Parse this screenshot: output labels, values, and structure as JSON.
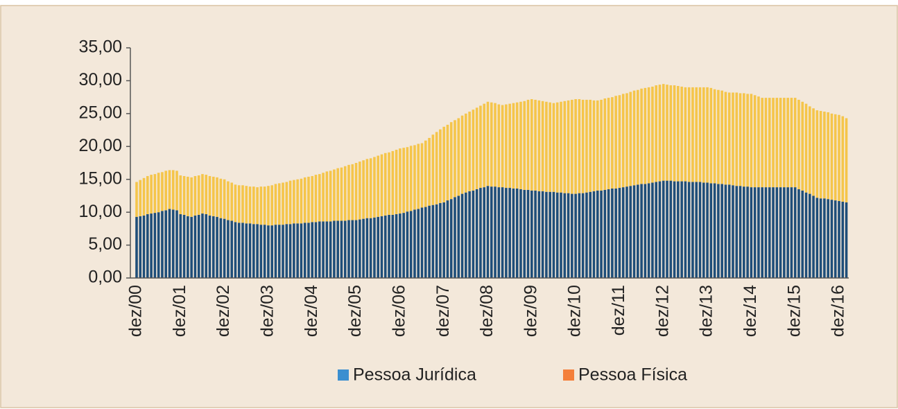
{
  "chart_data": {
    "type": "stacked_bar",
    "categories": [
      "dez/00",
      null,
      null,
      null,
      null,
      null,
      null,
      null,
      null,
      null,
      null,
      null,
      "dez/01",
      null,
      null,
      null,
      null,
      null,
      null,
      null,
      null,
      null,
      null,
      null,
      "dez/02",
      null,
      null,
      null,
      null,
      null,
      null,
      null,
      null,
      null,
      null,
      null,
      "dez/03",
      null,
      null,
      null,
      null,
      null,
      null,
      null,
      null,
      null,
      null,
      null,
      "dez/04",
      null,
      null,
      null,
      null,
      null,
      null,
      null,
      null,
      null,
      null,
      null,
      "dez/05",
      null,
      null,
      null,
      null,
      null,
      null,
      null,
      null,
      null,
      null,
      null,
      "dez/06",
      null,
      null,
      null,
      null,
      null,
      null,
      null,
      null,
      null,
      null,
      null,
      "dez/07",
      null,
      null,
      null,
      null,
      null,
      null,
      null,
      null,
      null,
      null,
      null,
      "dez/08",
      null,
      null,
      null,
      null,
      null,
      null,
      null,
      null,
      null,
      null,
      null,
      "dez/09",
      null,
      null,
      null,
      null,
      null,
      null,
      null,
      null,
      null,
      null,
      null,
      "dez/10",
      null,
      null,
      null,
      null,
      null,
      null,
      null,
      null,
      null,
      null,
      null,
      "dez/11",
      null,
      null,
      null,
      null,
      null,
      null,
      null,
      null,
      null,
      null,
      null,
      "dez/12",
      null,
      null,
      null,
      null,
      null,
      null,
      null,
      null,
      null,
      null,
      null,
      "dez/13",
      null,
      null,
      null,
      null,
      null,
      null,
      null,
      null,
      null,
      null,
      null,
      "dez/14",
      null,
      null,
      null,
      null,
      null,
      null,
      null,
      null,
      null,
      null,
      null,
      "dez/15",
      null,
      null,
      null,
      null,
      null,
      null,
      null,
      null,
      null,
      null,
      null,
      "dez/16",
      null,
      null
    ],
    "series": [
      {
        "name": "Pessoa Jurídica",
        "color": "#1f4e79",
        "legend_color": "#3b8fd0",
        "values": [
          9.3,
          9.4,
          9.5,
          9.7,
          9.8,
          9.9,
          10.0,
          10.2,
          10.3,
          10.5,
          10.4,
          10.3,
          9.7,
          9.6,
          9.4,
          9.3,
          9.5,
          9.6,
          9.8,
          9.7,
          9.5,
          9.4,
          9.3,
          9.1,
          9.0,
          8.8,
          8.7,
          8.5,
          8.4,
          8.4,
          8.3,
          8.3,
          8.2,
          8.2,
          8.1,
          8.1,
          8.0,
          8.0,
          8.1,
          8.1,
          8.1,
          8.2,
          8.2,
          8.3,
          8.3,
          8.3,
          8.4,
          8.4,
          8.5,
          8.5,
          8.6,
          8.6,
          8.6,
          8.6,
          8.7,
          8.7,
          8.7,
          8.7,
          8.8,
          8.8,
          8.8,
          8.9,
          9.0,
          9.1,
          9.1,
          9.2,
          9.3,
          9.4,
          9.5,
          9.6,
          9.6,
          9.7,
          9.8,
          9.9,
          10.1,
          10.2,
          10.4,
          10.5,
          10.7,
          10.8,
          11.0,
          11.1,
          11.2,
          11.4,
          11.5,
          11.8,
          12.0,
          12.3,
          12.5,
          12.8,
          13.0,
          13.2,
          13.3,
          13.5,
          13.7,
          13.8,
          14.0,
          13.9,
          13.9,
          13.8,
          13.8,
          13.7,
          13.7,
          13.6,
          13.6,
          13.5,
          13.4,
          13.4,
          13.3,
          13.3,
          13.2,
          13.2,
          13.1,
          13.1,
          13.1,
          13.0,
          13.0,
          12.9,
          12.9,
          12.8,
          12.8,
          12.9,
          12.9,
          13.0,
          13.1,
          13.2,
          13.3,
          13.3,
          13.4,
          13.5,
          13.6,
          13.6,
          13.7,
          13.8,
          13.9,
          14.0,
          14.1,
          14.2,
          14.3,
          14.3,
          14.4,
          14.5,
          14.6,
          14.7,
          14.8,
          14.8,
          14.8,
          14.7,
          14.7,
          14.7,
          14.7,
          14.6,
          14.6,
          14.6,
          14.6,
          14.5,
          14.5,
          14.4,
          14.4,
          14.3,
          14.3,
          14.2,
          14.2,
          14.1,
          14.0,
          14.0,
          13.9,
          13.9,
          13.8,
          13.8,
          13.8,
          13.8,
          13.8,
          13.8,
          13.8,
          13.8,
          13.8,
          13.8,
          13.8,
          13.8,
          13.8,
          13.5,
          13.3,
          13.0,
          12.8,
          12.5,
          12.2,
          12.1,
          12.1,
          12.0,
          11.9,
          11.8,
          11.7,
          11.6,
          11.5
        ]
      },
      {
        "name": "Pessoa Física",
        "color": "#f5c54a",
        "legend_color": "#f47f3a",
        "values": [
          5.3,
          5.5,
          5.7,
          5.8,
          5.9,
          5.9,
          6.0,
          5.9,
          6.0,
          5.9,
          6.0,
          6.0,
          5.9,
          5.9,
          6.0,
          6.0,
          6.0,
          6.0,
          6.0,
          6.0,
          6.0,
          6.0,
          6.0,
          6.0,
          6.0,
          5.9,
          5.8,
          5.7,
          5.7,
          5.7,
          5.7,
          5.6,
          5.7,
          5.6,
          5.8,
          5.8,
          6.0,
          6.1,
          6.2,
          6.3,
          6.4,
          6.4,
          6.6,
          6.6,
          6.7,
          6.8,
          6.9,
          7.0,
          7.0,
          7.2,
          7.2,
          7.4,
          7.6,
          7.7,
          7.8,
          8.0,
          8.1,
          8.3,
          8.4,
          8.5,
          8.7,
          8.8,
          8.9,
          9.0,
          9.1,
          9.2,
          9.3,
          9.4,
          9.5,
          9.5,
          9.7,
          9.8,
          9.9,
          9.9,
          9.8,
          9.9,
          9.8,
          9.9,
          9.8,
          10.1,
          10.3,
          10.7,
          11.0,
          11.2,
          11.5,
          11.5,
          11.7,
          11.7,
          11.8,
          11.9,
          12.0,
          12.1,
          12.3,
          12.4,
          12.5,
          12.7,
          12.8,
          12.8,
          12.7,
          12.6,
          12.5,
          12.7,
          12.8,
          13.0,
          13.1,
          13.3,
          13.5,
          13.7,
          13.9,
          13.8,
          13.8,
          13.7,
          13.7,
          13.6,
          13.5,
          13.7,
          13.8,
          14.0,
          14.1,
          14.3,
          14.4,
          14.3,
          14.2,
          14.1,
          14.0,
          13.8,
          13.7,
          13.8,
          13.9,
          13.9,
          13.9,
          14.1,
          14.1,
          14.2,
          14.2,
          14.3,
          14.4,
          14.4,
          14.5,
          14.6,
          14.6,
          14.6,
          14.7,
          14.7,
          14.7,
          14.6,
          14.5,
          14.6,
          14.5,
          14.4,
          14.3,
          14.4,
          14.4,
          14.4,
          14.4,
          14.5,
          14.5,
          14.5,
          14.3,
          14.3,
          14.2,
          14.1,
          14.0,
          14.1,
          14.2,
          14.1,
          14.2,
          14.1,
          14.2,
          14.0,
          13.8,
          13.6,
          13.6,
          13.6,
          13.6,
          13.6,
          13.6,
          13.6,
          13.6,
          13.6,
          13.6,
          13.6,
          13.5,
          13.5,
          13.3,
          13.3,
          13.3,
          13.3,
          13.2,
          13.2,
          13.1,
          13.1,
          13.1,
          13.0,
          12.8
        ]
      }
    ],
    "ylim": [
      0,
      35
    ],
    "yticks": [
      {
        "value": 0,
        "label": "0,00"
      },
      {
        "value": 5,
        "label": "5,00"
      },
      {
        "value": 10,
        "label": "10,00"
      },
      {
        "value": 15,
        "label": "15,00"
      },
      {
        "value": 20,
        "label": "20,00"
      },
      {
        "value": 25,
        "label": "25,00"
      },
      {
        "value": 30,
        "label": "30,00"
      },
      {
        "value": 35,
        "label": "35,00"
      }
    ],
    "legend": "bottom"
  }
}
